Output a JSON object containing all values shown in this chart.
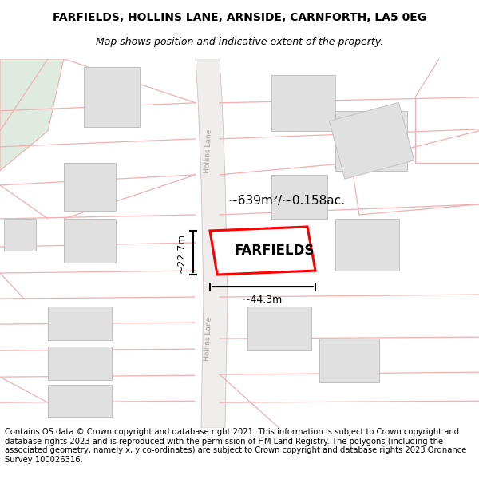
{
  "title": "FARFIELDS, HOLLINS LANE, ARNSIDE, CARNFORTH, LA5 0EG",
  "subtitle": "Map shows position and indicative extent of the property.",
  "footer": "Contains OS data © Crown copyright and database right 2021. This information is subject to Crown copyright and database rights 2023 and is reproduced with the permission of HM Land Registry. The polygons (including the associated geometry, namely x, y co-ordinates) are subject to Crown copyright and database rights 2023 Ordnance Survey 100026316.",
  "bg_color": "#ffffff",
  "map_bg": "#ffffff",
  "road_outline": "#f0b0b0",
  "road_fill": "#f8f8f8",
  "building_fill": "#e0e0e0",
  "building_edge": "#c0c0c0",
  "green_fill": "#e0ebe0",
  "property_color": "#ff0000",
  "property_label": "FARFIELDS",
  "area_label": "~639m²/~0.158ac.",
  "width_label": "~44.3m",
  "height_label": "~22.7m",
  "lane_label": "Hollins Lane",
  "title_fontsize": 10,
  "subtitle_fontsize": 9,
  "footer_fontsize": 7.2
}
